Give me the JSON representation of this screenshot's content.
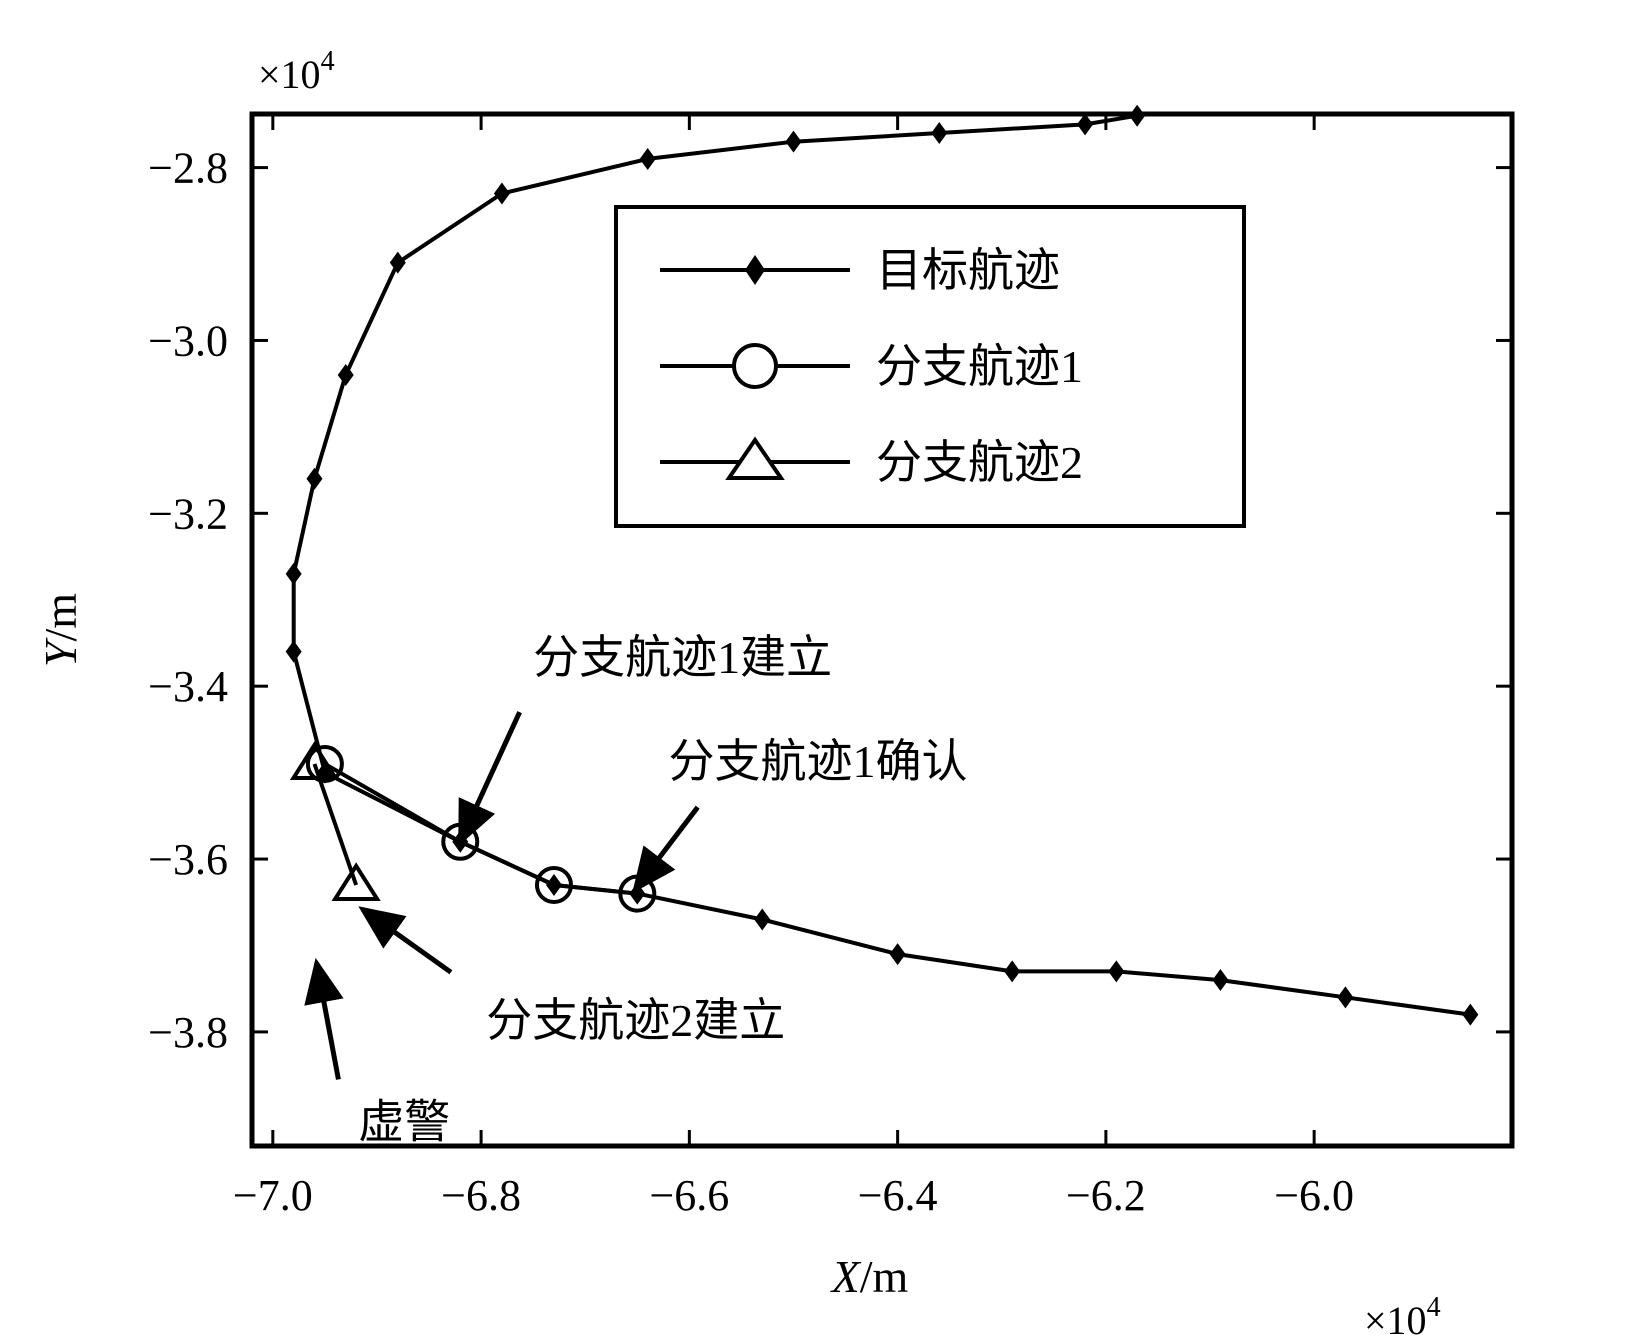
{
  "chart_data": {
    "type": "line",
    "title": "",
    "xlabel_var": "X",
    "xlabel_unit": "/m",
    "ylabel_var": "Y",
    "ylabel_unit": "/m",
    "x_multiplier": {
      "base": "×10",
      "exp": "4"
    },
    "y_multiplier": {
      "base": "×10",
      "exp": "4"
    },
    "xlim": [
      -7.02,
      -5.81
    ],
    "ylim": [
      -3.932,
      -2.738
    ],
    "xticks": [
      -7.0,
      -6.8,
      -6.6,
      -6.4,
      -6.2,
      -6.0
    ],
    "yticks": [
      -2.8,
      -3.0,
      -3.2,
      -3.4,
      -3.6,
      -3.8
    ],
    "xtick_labels": [
      "−7.0",
      "−6.8",
      "−6.6",
      "−6.4",
      "−6.2",
      "−6.0"
    ],
    "ytick_labels": [
      "−2.8",
      "−3.0",
      "−3.2",
      "−3.4",
      "−3.6",
      "−3.8"
    ],
    "grid": false,
    "legend_position": "top-right",
    "series": [
      {
        "name": "目标航迹",
        "marker": "diamond",
        "x": [
          -5.85,
          -5.97,
          -6.09,
          -6.19,
          -6.29,
          -6.4,
          -6.53,
          -6.65,
          -6.73,
          -6.82,
          -6.95,
          -6.98,
          -6.98,
          -6.96,
          -6.93,
          -6.88,
          -6.78,
          -6.64,
          -6.5,
          -6.36,
          -6.22,
          -6.17
        ],
        "y": [
          -3.78,
          -3.76,
          -3.74,
          -3.73,
          -3.73,
          -3.71,
          -3.67,
          -3.64,
          -3.63,
          -3.58,
          -3.5,
          -3.36,
          -3.27,
          -3.16,
          -3.04,
          -2.91,
          -2.83,
          -2.79,
          -2.77,
          -2.76,
          -2.75,
          -2.74
        ]
      },
      {
        "name": "分支航迹1",
        "marker": "circle",
        "x": [
          -6.95,
          -6.82,
          -6.73,
          -6.65
        ],
        "y": [
          -3.49,
          -3.58,
          -3.63,
          -3.64
        ]
      },
      {
        "name": "分支航迹2",
        "marker": "triangle",
        "x": [
          -6.96,
          -6.92
        ],
        "y": [
          -3.49,
          -3.63
        ]
      }
    ],
    "annotations": [
      {
        "text": "分支航迹1建立",
        "text_x": -6.75,
        "text_y": -3.385,
        "arrow_from": [
          -6.763,
          -3.43
        ],
        "arrow_to": [
          -6.82,
          -3.58
        ]
      },
      {
        "text": "分支航迹1确认",
        "text_x": -6.62,
        "text_y": -3.505,
        "arrow_from": [
          -6.592,
          -3.54
        ],
        "arrow_to": [
          -6.652,
          -3.635
        ]
      },
      {
        "text": "分支航迹2建立",
        "text_x": -6.795,
        "text_y": -3.805,
        "arrow_from": [
          -6.829,
          -3.731
        ],
        "arrow_to": [
          -6.914,
          -3.658
        ]
      },
      {
        "text": "虚警",
        "text_x": -6.918,
        "text_y": -3.922,
        "arrow_from": [
          -6.937,
          -3.855
        ],
        "arrow_to": [
          -6.958,
          -3.72
        ]
      }
    ]
  }
}
